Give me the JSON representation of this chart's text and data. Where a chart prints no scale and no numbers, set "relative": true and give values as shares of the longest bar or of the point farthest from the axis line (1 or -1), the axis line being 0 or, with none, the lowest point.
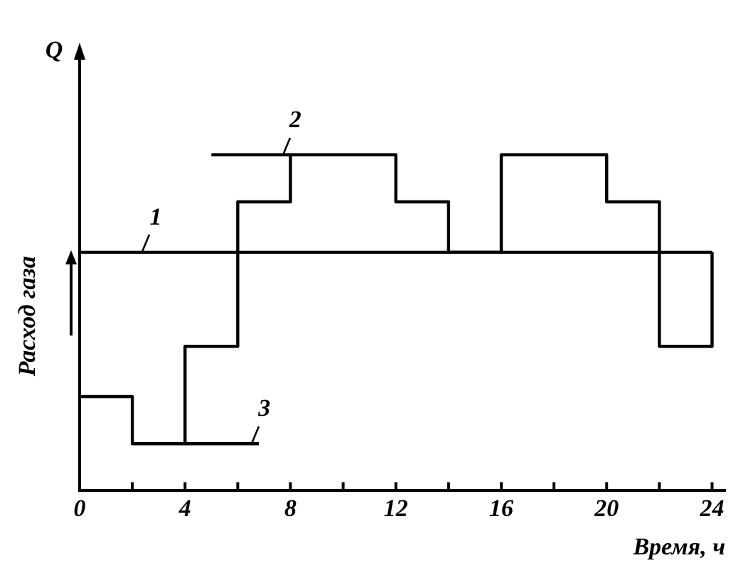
{
  "chart_data": {
    "type": "step",
    "relative": true,
    "xlabel": "Время, ч",
    "ylabel": "Расход газа",
    "annotations": [
      "Q"
    ],
    "xlim": [
      0,
      24.5
    ],
    "xticks": [
      0,
      {
        "value": 2,
        "label": null
      },
      4,
      {
        "value": 6,
        "label": null
      },
      8,
      {
        "value": 10,
        "label": null
      },
      12,
      {
        "value": 14,
        "label": null
      },
      16,
      {
        "value": 18,
        "label": null
      },
      20,
      {
        "value": 22,
        "label": null
      },
      24
    ],
    "grid": false,
    "legend": false,
    "line_style": "solid",
    "marker": "none",
    "series": [
      {
        "name": "1",
        "color": "#000000",
        "x": [
          0,
          24
        ],
        "values": [
          0.71,
          0.71
        ]
      },
      {
        "color": "#000000",
        "x": [
          0,
          2,
          4,
          6,
          8,
          12,
          14,
          16,
          20,
          22,
          24,
          24
        ],
        "values": [
          0.28,
          0.14,
          0.43,
          0.86,
          1,
          0.86,
          0.71,
          1,
          0.86,
          0.43,
          0.43,
          0.71
        ]
      },
      {
        "name": "2",
        "color": "#000000",
        "x": [
          5,
          8
        ],
        "values": [
          1,
          1
        ]
      },
      {
        "name": "3",
        "color": "#000000",
        "x": [
          4,
          6.8
        ],
        "values": [
          0.14,
          0.14
        ]
      }
    ]
  }
}
